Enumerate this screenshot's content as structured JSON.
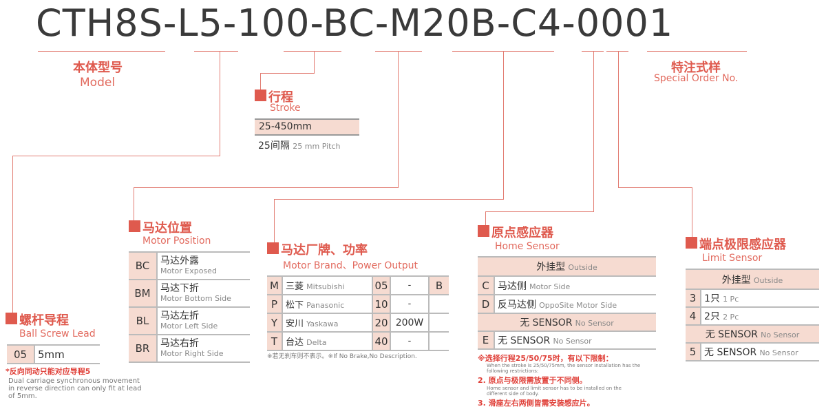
{
  "model_code": {
    "parts": [
      "CTH8S",
      "L5",
      "100",
      "BC",
      "M20B",
      "C4",
      "0001"
    ],
    "separator": "-"
  },
  "colors": {
    "accent": "#df5a4e",
    "cell": "#f6dbd1",
    "line": "#e27c72"
  },
  "model": {
    "zh": "本体型号",
    "en": "Model"
  },
  "special": {
    "zh": "特注式样",
    "en": "Special Order No."
  },
  "stroke": {
    "zh": "行程",
    "en": "Stroke",
    "range": "25-450mm",
    "pitch_zh": "25间隔",
    "pitch_en": "25 mm Pitch"
  },
  "lead": {
    "zh": "螺杆导程",
    "en": "Ball Screw Lead",
    "code": "05",
    "value": "5mm",
    "note_zh": "*反向同动只能对应导程5",
    "note_en": "Dual carriage synchronous movement in reverse direction can only fit at lead of 5mm."
  },
  "position": {
    "zh": "马达位置",
    "en": "Motor Position",
    "rows": [
      {
        "code": "BC",
        "zh": "马达外露",
        "en": "Motor Exposed"
      },
      {
        "code": "BM",
        "zh": "马达下折",
        "en": "Motor Bottom Side"
      },
      {
        "code": "BL",
        "zh": "马达左折",
        "en": "Motor Left Side"
      },
      {
        "code": "BR",
        "zh": "马达右折",
        "en": "Motor Right Side"
      }
    ]
  },
  "brand": {
    "zh": "马达厂牌、功率",
    "en": "Motor Brand、Power Output",
    "brake": "B",
    "rows": [
      {
        "code": "M",
        "zh": "三菱",
        "en": "Mitsubishi",
        "pcode": "05",
        "power": "-"
      },
      {
        "code": "P",
        "zh": "松下",
        "en": "Panasonic",
        "pcode": "10",
        "power": "-"
      },
      {
        "code": "Y",
        "zh": "安川",
        "en": "Yaskawa",
        "pcode": "20",
        "power": "200W"
      },
      {
        "code": "T",
        "zh": "台达",
        "en": "Delta",
        "pcode": "40",
        "power": "-"
      }
    ],
    "note": "※若无刹车则不表示。※If No Brake,No Description."
  },
  "home": {
    "zh": "原点感应器",
    "en": "Home Sensor",
    "outside": {
      "zh": "外挂型",
      "en": "Outside"
    },
    "rows": [
      {
        "code": "C",
        "zh": "马达侧",
        "en": "Motor Side"
      },
      {
        "code": "D",
        "zh": "反马达侧",
        "en": "OppoSite Motor Side"
      }
    ],
    "none_header": {
      "zh": "无 SENSOR",
      "en": "No Sensor"
    },
    "none_row": {
      "code": "E",
      "zh": "无 SENSOR",
      "en": "No Sensor"
    },
    "notes": [
      "※选择行程25/50/75时，有以下限制：",
      "When the stroke is 25/50/75mm, the sensor installation has the following restrictions:",
      "2. 原点与极限需放置于不同侧。",
      "Home sensor and limit sensor has to be installed on the different side of body.",
      "3. 滑座左右两侧皆需安装感应片。"
    ]
  },
  "limit": {
    "zh": "端点极限感应器",
    "en": "Limit Sensor",
    "outside": {
      "zh": "外挂型",
      "en": "Outside"
    },
    "rows": [
      {
        "code": "3",
        "zh": "1只",
        "en": "1 Pc"
      },
      {
        "code": "4",
        "zh": "2只",
        "en": "2 Pc"
      }
    ],
    "none_header": {
      "zh": "无 SENSOR",
      "en": "No Sensor"
    },
    "none_row": {
      "code": "5",
      "zh": "无 SENSOR",
      "en": "No Sensor"
    }
  }
}
